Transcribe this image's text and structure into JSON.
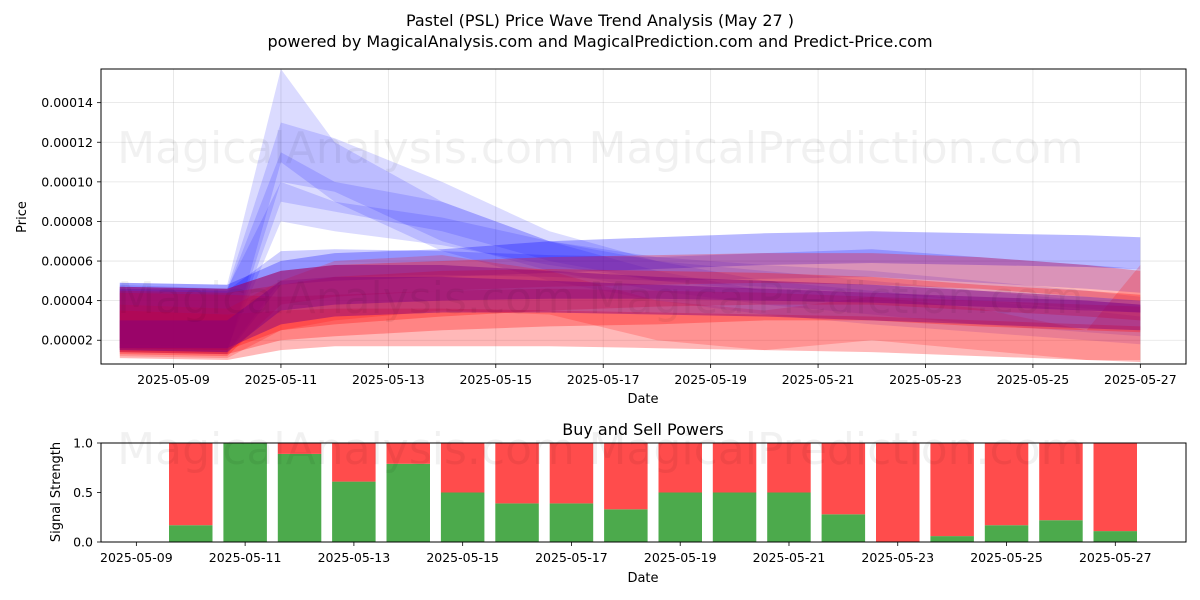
{
  "figure": {
    "title": "Pastel (PSL) Price Wave Trend Analysis (May 27 )",
    "subtitle": "powered by MagicalAnalysis.com and MagicalPrediction.com and Predict-Price.com",
    "watermarks": [
      "MagicalAnalysis.com",
      "MagicalPrediction.com"
    ]
  },
  "chart_data": [
    {
      "type": "area",
      "title": "",
      "xlabel": "Date",
      "ylabel": "Price",
      "x_ticks": [
        "2025-05-09",
        "2025-05-11",
        "2025-05-13",
        "2025-05-15",
        "2025-05-17",
        "2025-05-19",
        "2025-05-21",
        "2025-05-23",
        "2025-05-25",
        "2025-05-27"
      ],
      "y_ticks": [
        "0.00002",
        "0.00004",
        "0.00006",
        "0.00008",
        "0.00010",
        "0.00012",
        "0.00014"
      ],
      "xlim": [
        "2025-05-08",
        "2025-05-28"
      ],
      "ylim": [
        8e-06,
        0.000157
      ],
      "grid": true,
      "x": [
        "2025-05-08",
        "2025-05-10",
        "2025-05-11",
        "2025-05-12",
        "2025-05-14",
        "2025-05-16",
        "2025-05-18",
        "2025-05-20",
        "2025-05-22",
        "2025-05-24",
        "2025-05-26",
        "2025-05-27"
      ],
      "series": [
        {
          "color": "#0000ff",
          "alpha": 0.14,
          "upper": [
            4.9e-05,
            4.8e-05,
            0.000157,
            0.00012,
            9e-05,
            7e-05,
            5.5e-05,
            4.5e-05,
            4e-05,
            3.5e-05,
            3e-05,
            2.8e-05
          ],
          "lower": [
            1.4e-05,
            1.3e-05,
            0.00011,
            9e-05,
            6.5e-05,
            5e-05,
            4e-05,
            3.3e-05,
            2.8e-05,
            2.4e-05,
            2e-05,
            1.8e-05
          ]
        },
        {
          "color": "#0000ff",
          "alpha": 0.14,
          "upper": [
            4.7e-05,
            4.6e-05,
            0.00013,
            0.000122,
            0.0001,
            7.5e-05,
            6e-05,
            5e-05,
            4.5e-05,
            4e-05,
            3.5e-05,
            3.2e-05
          ],
          "lower": [
            1.5e-05,
            1.4e-05,
            0.0001,
            9.5e-05,
            7e-05,
            5.5e-05,
            4.5e-05,
            3.8e-05,
            3.3e-05,
            2.8e-05,
            2.4e-05,
            2.2e-05
          ]
        },
        {
          "color": "#0000ff",
          "alpha": 0.14,
          "upper": [
            4.6e-05,
            4.5e-05,
            0.000115,
            0.0001,
            9e-05,
            7e-05,
            6e-05,
            5.5e-05,
            5e-05,
            4.5e-05,
            4e-05,
            3.8e-05
          ],
          "lower": [
            1.6e-05,
            1.5e-05,
            9e-05,
            8.5e-05,
            7.5e-05,
            6e-05,
            5e-05,
            4.5e-05,
            4e-05,
            3.5e-05,
            3e-05,
            2.8e-05
          ]
        },
        {
          "color": "#0000ff",
          "alpha": 0.14,
          "upper": [
            4.8e-05,
            4.6e-05,
            0.0001,
            9e-05,
            8.2e-05,
            7e-05,
            6.2e-05,
            5.8e-05,
            5.5e-05,
            5e-05,
            4.5e-05,
            4.2e-05
          ],
          "lower": [
            1.8e-05,
            1.6e-05,
            8e-05,
            7.5e-05,
            6.8e-05,
            5.8e-05,
            5e-05,
            4.7e-05,
            4.4e-05,
            4e-05,
            3.6e-05,
            3.4e-05
          ]
        },
        {
          "color": "#0000ff",
          "alpha": 0.28,
          "upper": [
            4.9e-05,
            4.8e-05,
            6e-05,
            6.4e-05,
            6.6e-05,
            7e-05,
            7.2e-05,
            7.4e-05,
            7.5e-05,
            7.4e-05,
            7.3e-05,
            7.2e-05
          ],
          "lower": [
            1.4e-05,
            1.3e-05,
            4.8e-05,
            5e-05,
            5.2e-05,
            5.4e-05,
            5.6e-05,
            5.8e-05,
            5.9e-05,
            5.8e-05,
            5.7e-05,
            5.6e-05
          ]
        },
        {
          "color": "#0000ff",
          "alpha": 0.2,
          "upper": [
            4.6e-05,
            4.5e-05,
            6.5e-05,
            6.6e-05,
            6.5e-05,
            6.3e-05,
            6.2e-05,
            6.4e-05,
            6.6e-05,
            6.2e-05,
            5.8e-05,
            5.6e-05
          ],
          "lower": [
            1.5e-05,
            1.4e-05,
            5e-05,
            5.2e-05,
            5.3e-05,
            5.2e-05,
            5e-05,
            5.1e-05,
            5.2e-05,
            4.9e-05,
            4.6e-05,
            4.4e-05
          ]
        },
        {
          "color": "#ff0000",
          "alpha": 0.28,
          "upper": [
            4.7e-05,
            4.6e-05,
            5.5e-05,
            5.8e-05,
            6e-05,
            6.2e-05,
            6.3e-05,
            6.4e-05,
            6.4e-05,
            6.2e-05,
            5.8e-05,
            5.5e-05
          ],
          "lower": [
            1.3e-05,
            1.2e-05,
            3.8e-05,
            4.2e-05,
            4.5e-05,
            4.7e-05,
            4.8e-05,
            4.9e-05,
            4.8e-05,
            4.6e-05,
            4.2e-05,
            4e-05
          ]
        },
        {
          "color": "#ff0000",
          "alpha": 0.28,
          "upper": [
            4.5e-05,
            4.4e-05,
            4.8e-05,
            5.2e-05,
            5.5e-05,
            5.6e-05,
            5.5e-05,
            5.4e-05,
            5.2e-05,
            4.8e-05,
            4.5e-05,
            4.3e-05
          ],
          "lower": [
            1.6e-05,
            1.5e-05,
            2.5e-05,
            2.8e-05,
            3.2e-05,
            3.5e-05,
            3.7e-05,
            3.8e-05,
            3.8e-05,
            3.5e-05,
            3.2e-05,
            3e-05
          ]
        },
        {
          "color": "#ff0000",
          "alpha": 0.28,
          "upper": [
            4.4e-05,
            4.3e-05,
            4.2e-05,
            4.3e-05,
            4.5e-05,
            4.6e-05,
            4.5e-05,
            4.4e-05,
            4.2e-05,
            4e-05,
            3.8e-05,
            3.7e-05
          ],
          "lower": [
            1.4e-05,
            1.3e-05,
            2e-05,
            2.2e-05,
            2.5e-05,
            2.7e-05,
            2.8e-05,
            3e-05,
            3e-05,
            2.7e-05,
            2.5e-05,
            2.4e-05
          ]
        },
        {
          "color": "#ff0000",
          "alpha": 0.28,
          "upper": [
            3.5e-05,
            3.3e-05,
            3.5e-05,
            3.6e-05,
            3.6e-05,
            3.5e-05,
            3.4e-05,
            3.3e-05,
            3.2e-05,
            3e-05,
            2.8e-05,
            2.7e-05
          ],
          "lower": [
            1.1e-05,
            1e-05,
            1.5e-05,
            1.7e-05,
            1.7e-05,
            1.7e-05,
            1.6e-05,
            1.5e-05,
            1.4e-05,
            1.2e-05,
            1e-05,
            9e-06
          ]
        },
        {
          "color": "#ff0000",
          "alpha": 0.2,
          "upper": [
            3.8e-05,
            3.6e-05,
            5e-05,
            6e-05,
            6.3e-05,
            5.5e-05,
            4e-05,
            3.5e-05,
            4.2e-05,
            3.6e-05,
            2.5e-05,
            5.8e-05
          ],
          "lower": [
            1.2e-05,
            1.1e-05,
            2.5e-05,
            3e-05,
            3.5e-05,
            3.3e-05,
            2e-05,
            1.5e-05,
            2e-05,
            1.5e-05,
            1e-05,
            1e-05
          ]
        },
        {
          "color": "#800080",
          "alpha": 0.45,
          "upper": [
            4.7e-05,
            4.6e-05,
            5.5e-05,
            5.8e-05,
            5.8e-05,
            5.5e-05,
            5.2e-05,
            5e-05,
            4.8e-05,
            4.5e-05,
            4.2e-05,
            4e-05
          ],
          "lower": [
            1.5e-05,
            1.4e-05,
            3.5e-05,
            3.8e-05,
            4e-05,
            4.1e-05,
            4.1e-05,
            4e-05,
            3.9e-05,
            3.7e-05,
            3.5e-05,
            3.4e-05
          ]
        },
        {
          "color": "#800080",
          "alpha": 0.45,
          "upper": [
            3e-05,
            3e-05,
            5e-05,
            5.2e-05,
            5.2e-05,
            5e-05,
            4.8e-05,
            4.6e-05,
            4.4e-05,
            4.2e-05,
            4e-05,
            3.8e-05
          ],
          "lower": [
            1.6e-05,
            1.6e-05,
            2.8e-05,
            3.2e-05,
            3.4e-05,
            3.4e-05,
            3.3e-05,
            3.2e-05,
            3e-05,
            2.8e-05,
            2.6e-05,
            2.5e-05
          ]
        }
      ]
    },
    {
      "type": "bar",
      "title": "Buy and Sell Powers",
      "xlabel": "Date",
      "ylabel": "Signal Strength",
      "x_ticks": [
        "2025-05-09",
        "2025-05-11",
        "2025-05-13",
        "2025-05-15",
        "2025-05-17",
        "2025-05-19",
        "2025-05-21",
        "2025-05-23",
        "2025-05-25",
        "2025-05-27"
      ],
      "y_ticks": [
        "0.0",
        "0.5",
        "1.0"
      ],
      "ylim": [
        0,
        1
      ],
      "categories": [
        "2025-05-10",
        "2025-05-11",
        "2025-05-12",
        "2025-05-13",
        "2025-05-14",
        "2025-05-15",
        "2025-05-16",
        "2025-05-17",
        "2025-05-18",
        "2025-05-19",
        "2025-05-20",
        "2025-05-21",
        "2025-05-22",
        "2025-05-23",
        "2025-05-24",
        "2025-05-25",
        "2025-05-26",
        "2025-05-27"
      ],
      "buy": [
        0.17,
        1.0,
        0.89,
        0.61,
        0.79,
        0.5,
        0.39,
        0.39,
        0.33,
        0.5,
        0.5,
        0.5,
        0.28,
        0.0,
        0.06,
        0.17,
        0.22,
        0.11
      ],
      "buy_color": "#4caa4c",
      "sell_color": "#ff4c4c"
    }
  ]
}
